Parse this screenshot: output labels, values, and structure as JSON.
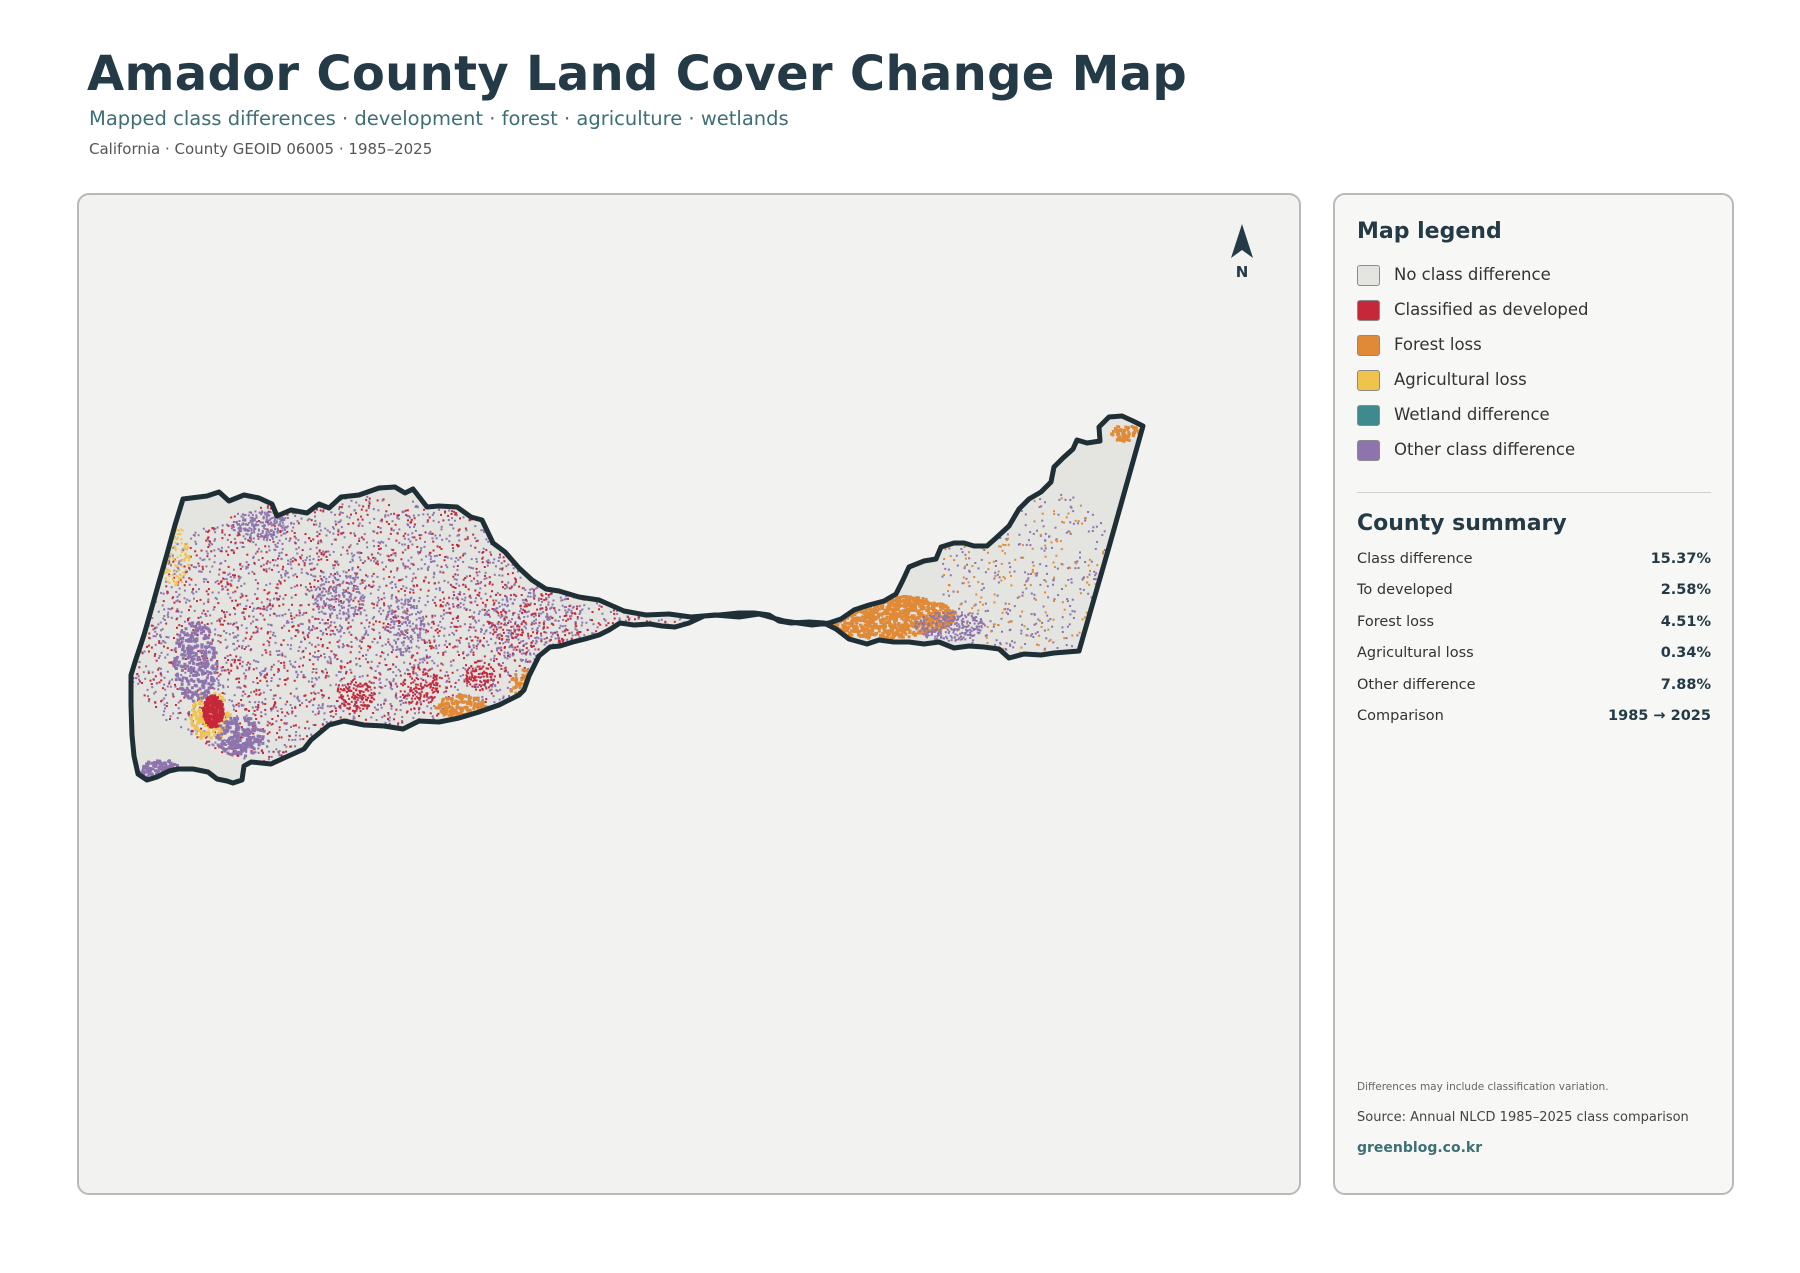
{
  "header": {
    "title": "Amador County Land Cover Change Map",
    "subtitle": "Mapped class differences · development · forest · agriculture · wetlands",
    "meta": "California · County GEOID 06005 · 1985–2025"
  },
  "map": {
    "north_label": "N",
    "colors": {
      "no_change": "#e4e4e0",
      "developed": "#c6283a",
      "forest": "#e08a38",
      "agriculture": "#f0c44c",
      "wetland": "#3f8a8f",
      "other": "#8e74ac",
      "boundary": "#1f2f36"
    }
  },
  "legend": {
    "title": "Map legend",
    "items": [
      {
        "label": "No class difference",
        "color": "#e4e4e0"
      },
      {
        "label": "Classified as developed",
        "color": "#c6283a"
      },
      {
        "label": "Forest loss",
        "color": "#e08a38"
      },
      {
        "label": "Agricultural loss",
        "color": "#f0c44c"
      },
      {
        "label": "Wetland difference",
        "color": "#3f8a8f"
      },
      {
        "label": "Other class difference",
        "color": "#8e74ac"
      }
    ]
  },
  "summary": {
    "title": "County summary",
    "rows": [
      {
        "key": "Class difference",
        "value": "15.37%"
      },
      {
        "key": "To developed",
        "value": "2.58%"
      },
      {
        "key": "Forest loss",
        "value": "4.51%"
      },
      {
        "key": "Agricultural loss",
        "value": "0.34%"
      },
      {
        "key": "Other difference",
        "value": "7.88%"
      },
      {
        "key": "Comparison",
        "value": "1985 → 2025"
      }
    ]
  },
  "footer": {
    "note": "Differences may include classification variation.",
    "source": "Source: Annual NLCD 1985–2025 class comparison",
    "site": "greenblog.co.kr"
  }
}
